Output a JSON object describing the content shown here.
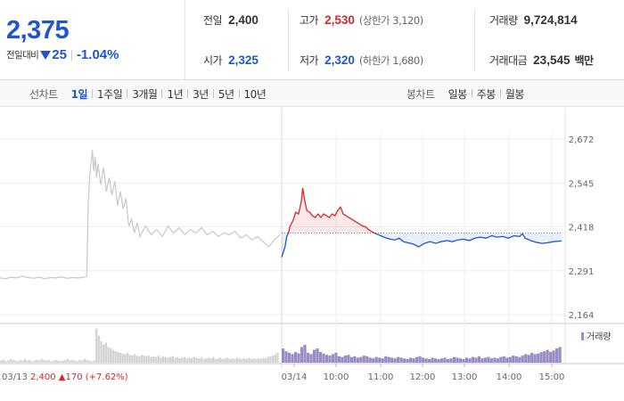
{
  "summary": {
    "price": "2,375",
    "change_label": "전일대비",
    "change_value": "25",
    "change_pct": "-1.04%",
    "prev_close_label": "전일",
    "prev_close": "2,400",
    "high_label": "고가",
    "high": "2,530",
    "upper_limit_note": "(상한가 3,120)",
    "volume_label": "거래량",
    "volume": "9,724,814",
    "open_label": "시가",
    "open": "2,325",
    "low_label": "저가",
    "low": "2,320",
    "lower_limit_note": "(하한가 1,680)",
    "trade_value_label": "거래대금",
    "trade_value": "23,545",
    "trade_value_unit": "백만"
  },
  "line_tabs": {
    "label": "선차트",
    "items": [
      "1일",
      "1주일",
      "3개월",
      "1년",
      "3년",
      "5년",
      "10년"
    ],
    "active": 0
  },
  "candle_tabs": {
    "label": "봉차트",
    "items": [
      "일봉",
      "주봉",
      "월봉"
    ]
  },
  "colors": {
    "up": "#d8262a",
    "down": "#1f55d1",
    "prev_day_line": "#c8c8c8",
    "volume_today": "#9a8cc4",
    "volume_prev": "#d4d4d4"
  },
  "chart_data": {
    "type": "line",
    "y_ticks": [
      "2,672",
      "2,545",
      "2,418",
      "2,291",
      "2,164"
    ],
    "ylim": [
      2164,
      2672
    ],
    "base_price": 2400,
    "x_ticks": [
      "03/14",
      "10:00",
      "11:00",
      "12:00",
      "13:00",
      "14:00",
      "15:00"
    ],
    "prev_day": {
      "date": "03/13",
      "close": "2,400",
      "change": "▲170",
      "change_pct": "(+7.62%)",
      "points": [
        [
          0.0,
          2270
        ],
        [
          0.02,
          2268
        ],
        [
          0.04,
          2272
        ],
        [
          0.06,
          2270
        ],
        [
          0.08,
          2275
        ],
        [
          0.1,
          2271
        ],
        [
          0.12,
          2269
        ],
        [
          0.14,
          2272
        ],
        [
          0.16,
          2268
        ],
        [
          0.18,
          2271
        ],
        [
          0.2,
          2270
        ],
        [
          0.22,
          2273
        ],
        [
          0.24,
          2269
        ],
        [
          0.26,
          2271
        ],
        [
          0.28,
          2270
        ],
        [
          0.3,
          2272
        ],
        [
          0.31,
          2275
        ],
        [
          0.315,
          2480
        ],
        [
          0.32,
          2560
        ],
        [
          0.325,
          2600
        ],
        [
          0.33,
          2640
        ],
        [
          0.335,
          2580
        ],
        [
          0.34,
          2620
        ],
        [
          0.345,
          2560
        ],
        [
          0.35,
          2600
        ],
        [
          0.36,
          2540
        ],
        [
          0.37,
          2590
        ],
        [
          0.38,
          2520
        ],
        [
          0.39,
          2560
        ],
        [
          0.4,
          2510
        ],
        [
          0.41,
          2550
        ],
        [
          0.42,
          2480
        ],
        [
          0.43,
          2520
        ],
        [
          0.44,
          2470
        ],
        [
          0.45,
          2500
        ],
        [
          0.46,
          2420
        ],
        [
          0.47,
          2440
        ],
        [
          0.48,
          2400
        ],
        [
          0.49,
          2430
        ],
        [
          0.5,
          2390
        ],
        [
          0.52,
          2420
        ],
        [
          0.54,
          2395
        ],
        [
          0.56,
          2410
        ],
        [
          0.58,
          2390
        ],
        [
          0.6,
          2420
        ],
        [
          0.62,
          2400
        ],
        [
          0.64,
          2415
        ],
        [
          0.66,
          2395
        ],
        [
          0.68,
          2410
        ],
        [
          0.7,
          2400
        ],
        [
          0.72,
          2415
        ],
        [
          0.74,
          2395
        ],
        [
          0.76,
          2405
        ],
        [
          0.78,
          2390
        ],
        [
          0.8,
          2400
        ],
        [
          0.82,
          2395
        ],
        [
          0.84,
          2405
        ],
        [
          0.86,
          2385
        ],
        [
          0.88,
          2395
        ],
        [
          0.9,
          2380
        ],
        [
          0.92,
          2390
        ],
        [
          0.94,
          2375
        ],
        [
          0.96,
          2360
        ],
        [
          0.98,
          2380
        ],
        [
          1.0,
          2395
        ]
      ]
    },
    "intraday": {
      "date": "03/14",
      "points": [
        [
          0.0,
          2330
        ],
        [
          0.006,
          2345
        ],
        [
          0.012,
          2360
        ],
        [
          0.018,
          2390
        ],
        [
          0.024,
          2400
        ],
        [
          0.03,
          2420
        ],
        [
          0.04,
          2435
        ],
        [
          0.05,
          2460
        ],
        [
          0.06,
          2455
        ],
        [
          0.07,
          2490
        ],
        [
          0.075,
          2530
        ],
        [
          0.082,
          2495
        ],
        [
          0.09,
          2465
        ],
        [
          0.1,
          2460
        ],
        [
          0.11,
          2450
        ],
        [
          0.12,
          2445
        ],
        [
          0.13,
          2455
        ],
        [
          0.14,
          2445
        ],
        [
          0.15,
          2455
        ],
        [
          0.16,
          2450
        ],
        [
          0.17,
          2445
        ],
        [
          0.18,
          2455
        ],
        [
          0.19,
          2450
        ],
        [
          0.2,
          2465
        ],
        [
          0.21,
          2475
        ],
        [
          0.22,
          2455
        ],
        [
          0.23,
          2450
        ],
        [
          0.24,
          2445
        ],
        [
          0.25,
          2440
        ],
        [
          0.26,
          2435
        ],
        [
          0.27,
          2430
        ],
        [
          0.28,
          2425
        ],
        [
          0.29,
          2420
        ],
        [
          0.3,
          2418
        ],
        [
          0.31,
          2410
        ],
        [
          0.32,
          2405
        ],
        [
          0.33,
          2400
        ],
        [
          0.345,
          2395
        ],
        [
          0.36,
          2390
        ],
        [
          0.375,
          2385
        ],
        [
          0.39,
          2382
        ],
        [
          0.405,
          2380
        ],
        [
          0.42,
          2385
        ],
        [
          0.435,
          2375
        ],
        [
          0.45,
          2372
        ],
        [
          0.47,
          2368
        ],
        [
          0.49,
          2360
        ],
        [
          0.51,
          2370
        ],
        [
          0.53,
          2375
        ],
        [
          0.55,
          2370
        ],
        [
          0.57,
          2375
        ],
        [
          0.59,
          2378
        ],
        [
          0.61,
          2375
        ],
        [
          0.63,
          2380
        ],
        [
          0.65,
          2382
        ],
        [
          0.67,
          2378
        ],
        [
          0.69,
          2385
        ],
        [
          0.71,
          2388
        ],
        [
          0.73,
          2385
        ],
        [
          0.75,
          2392
        ],
        [
          0.77,
          2388
        ],
        [
          0.79,
          2390
        ],
        [
          0.81,
          2385
        ],
        [
          0.83,
          2392
        ],
        [
          0.85,
          2390
        ],
        [
          0.86,
          2398
        ],
        [
          0.87,
          2385
        ],
        [
          0.89,
          2378
        ],
        [
          0.91,
          2373
        ],
        [
          0.93,
          2370
        ],
        [
          0.95,
          2372
        ],
        [
          0.97,
          2375
        ],
        [
          1.0,
          2377
        ]
      ]
    },
    "volume_label": "거래량",
    "volume_prev": [
      3,
      4,
      2,
      3,
      5,
      4,
      3,
      2,
      4,
      3,
      5,
      3,
      4,
      2,
      3,
      4,
      3,
      5,
      4,
      3,
      4,
      2,
      3,
      4,
      3,
      2,
      3,
      4,
      5,
      3,
      4,
      3,
      2,
      4,
      3,
      5,
      4,
      3,
      2,
      3,
      48,
      38,
      30,
      25,
      28,
      22,
      20,
      18,
      16,
      15,
      14,
      13,
      12,
      14,
      11,
      10,
      12,
      10,
      9,
      11,
      10,
      9,
      10,
      8,
      9,
      8,
      10,
      7,
      9,
      8,
      7,
      8,
      9,
      7,
      8,
      6,
      7,
      8,
      6,
      7,
      6,
      8,
      7,
      6,
      7,
      5,
      6,
      7,
      6,
      8,
      5,
      6,
      7,
      5,
      6,
      7,
      5,
      6,
      5,
      7,
      6,
      5,
      6,
      5,
      7,
      5,
      6,
      5,
      6,
      5,
      7,
      6,
      8,
      9,
      10,
      12,
      14
    ],
    "volume_today": [
      20,
      16,
      14,
      12,
      15,
      13,
      22,
      25,
      14,
      12,
      18,
      20,
      15,
      13,
      11,
      10,
      12,
      14,
      9,
      8,
      10,
      11,
      8,
      9,
      7,
      8,
      10,
      9,
      7,
      6,
      8,
      7,
      6,
      9,
      8,
      7,
      6,
      8,
      7,
      6,
      5,
      7,
      6,
      8,
      9,
      7,
      6,
      5,
      7,
      6,
      5,
      6,
      7,
      5,
      6,
      8,
      7,
      6,
      5,
      7,
      6,
      8,
      7,
      9,
      6,
      7,
      8,
      6,
      7,
      6,
      8,
      9,
      7,
      8,
      10,
      9,
      8,
      10,
      12,
      11,
      14,
      12,
      13,
      15,
      16,
      18,
      15,
      17,
      20,
      22
    ]
  }
}
